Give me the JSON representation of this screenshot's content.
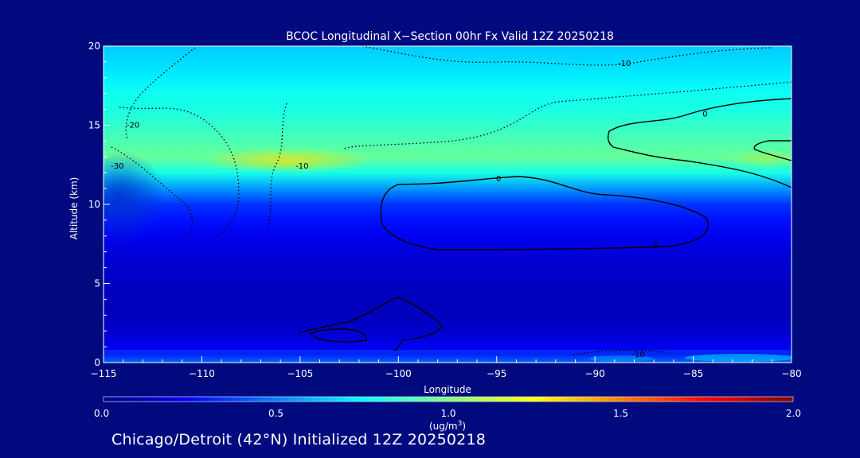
{
  "chart_data": {
    "type": "heatmap",
    "title": "BCOC Longitudinal X−Section 00hr  Fx Valid 12Z 20250218",
    "xlabel": "Longitude",
    "ylabel": "Altitude (km)",
    "xlim": [
      -115,
      -80
    ],
    "ylim": [
      0,
      20
    ],
    "x_ticks": [
      -115,
      -110,
      -105,
      -100,
      -95,
      -90,
      -85,
      -80
    ],
    "x_tick_labels": [
      "−115",
      "−110",
      "−105",
      "−100",
      "−95",
      "−90",
      "−85",
      "−80"
    ],
    "y_ticks": [
      0,
      5,
      10,
      15,
      20
    ],
    "y_tick_labels": [
      "0",
      "5",
      "10",
      "15",
      "20"
    ],
    "colorbar": {
      "min": 0.0,
      "max": 2.0,
      "ticks": [
        0.0,
        0.5,
        1.0,
        1.5,
        2.0
      ],
      "tick_labels": [
        "0.0",
        "0.5",
        "1.0",
        "1.5",
        "2.0"
      ],
      "unit_label": "(ug/m",
      "unit_superscript": "3",
      "unit_close": ")",
      "colormap": [
        "#00007f",
        "#0000ff",
        "#007fff",
        "#00ffff",
        "#7fff7f",
        "#ffff00",
        "#ff7f00",
        "#ff0000",
        "#7f0000"
      ]
    },
    "approx_profile": {
      "altitude_km": [
        0,
        0.5,
        1,
        2,
        3,
        4,
        5,
        6,
        7,
        8,
        9,
        10,
        11,
        12,
        13,
        14,
        15,
        16,
        17,
        18,
        19,
        20
      ],
      "value_ug_m3": [
        0.55,
        0.2,
        0.22,
        0.15,
        0.12,
        0.12,
        0.13,
        0.15,
        0.18,
        0.22,
        0.28,
        0.35,
        0.55,
        0.8,
        0.95,
        0.9,
        0.85,
        0.8,
        0.78,
        0.72,
        0.68,
        0.65
      ]
    },
    "contour_labels": [
      {
        "text": "-10",
        "lon": -88.5,
        "alt": 18.9
      },
      {
        "text": "-20",
        "lon": -113.5,
        "alt": 15.0
      },
      {
        "text": "-30",
        "lon": -114.3,
        "alt": 12.4
      },
      {
        "text": "-10",
        "lon": -104.9,
        "alt": 12.4
      },
      {
        "text": "0",
        "lon": -84.4,
        "alt": 15.7
      },
      {
        "text": "0",
        "lon": -94.9,
        "alt": 11.6
      },
      {
        "text": "0",
        "lon": -86.9,
        "alt": 7.5
      },
      {
        "text": "-10",
        "lon": -87.8,
        "alt": 0.5
      }
    ],
    "grid": false
  },
  "footer": {
    "text": "Chicago/Detroit (42°N) Initialized 12Z 20250218"
  }
}
